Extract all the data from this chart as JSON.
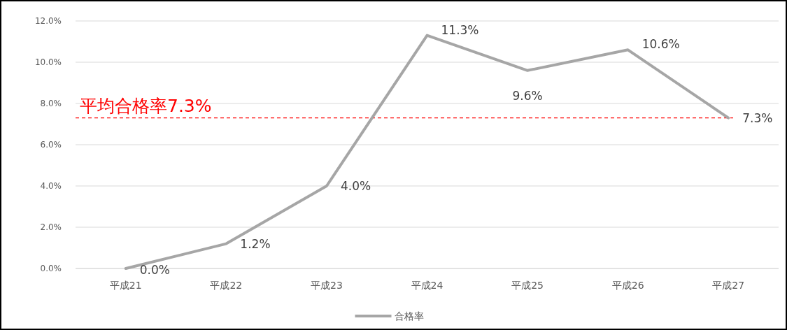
{
  "chart_data": {
    "type": "line",
    "categories": [
      "平成21",
      "平成22",
      "平成23",
      "平成24",
      "平成25",
      "平成26",
      "平成27"
    ],
    "series": [
      {
        "name": "合格率",
        "color": "#a6a6a6",
        "values": [
          0,
          1.2,
          4.0,
          11.3,
          9.6,
          10.6,
          7.3
        ],
        "value_labels": [
          "0.0%",
          "1.2%",
          "4.0%",
          "11.3%",
          "9.6%",
          "10.6%",
          "7.3%"
        ]
      }
    ],
    "ylim": [
      0,
      12
    ],
    "yticks": [
      {
        "value": 0,
        "label": "0.0%"
      },
      {
        "value": 2,
        "label": "2.0%"
      },
      {
        "value": 4,
        "label": "4.0%"
      },
      {
        "value": 6,
        "label": "6.0%"
      },
      {
        "value": 8,
        "label": "8.0%"
      },
      {
        "value": 10,
        "label": "10.0%"
      },
      {
        "value": 12,
        "label": "12.0%"
      }
    ],
    "ref_lines": [
      {
        "axis": "y",
        "value": 7.3,
        "label": "平均合格率7.3%",
        "color": "#ff0000",
        "line_style": "dashed"
      }
    ],
    "grid": "y",
    "legend": "bottom",
    "marker": "none",
    "line_style": "solid"
  }
}
